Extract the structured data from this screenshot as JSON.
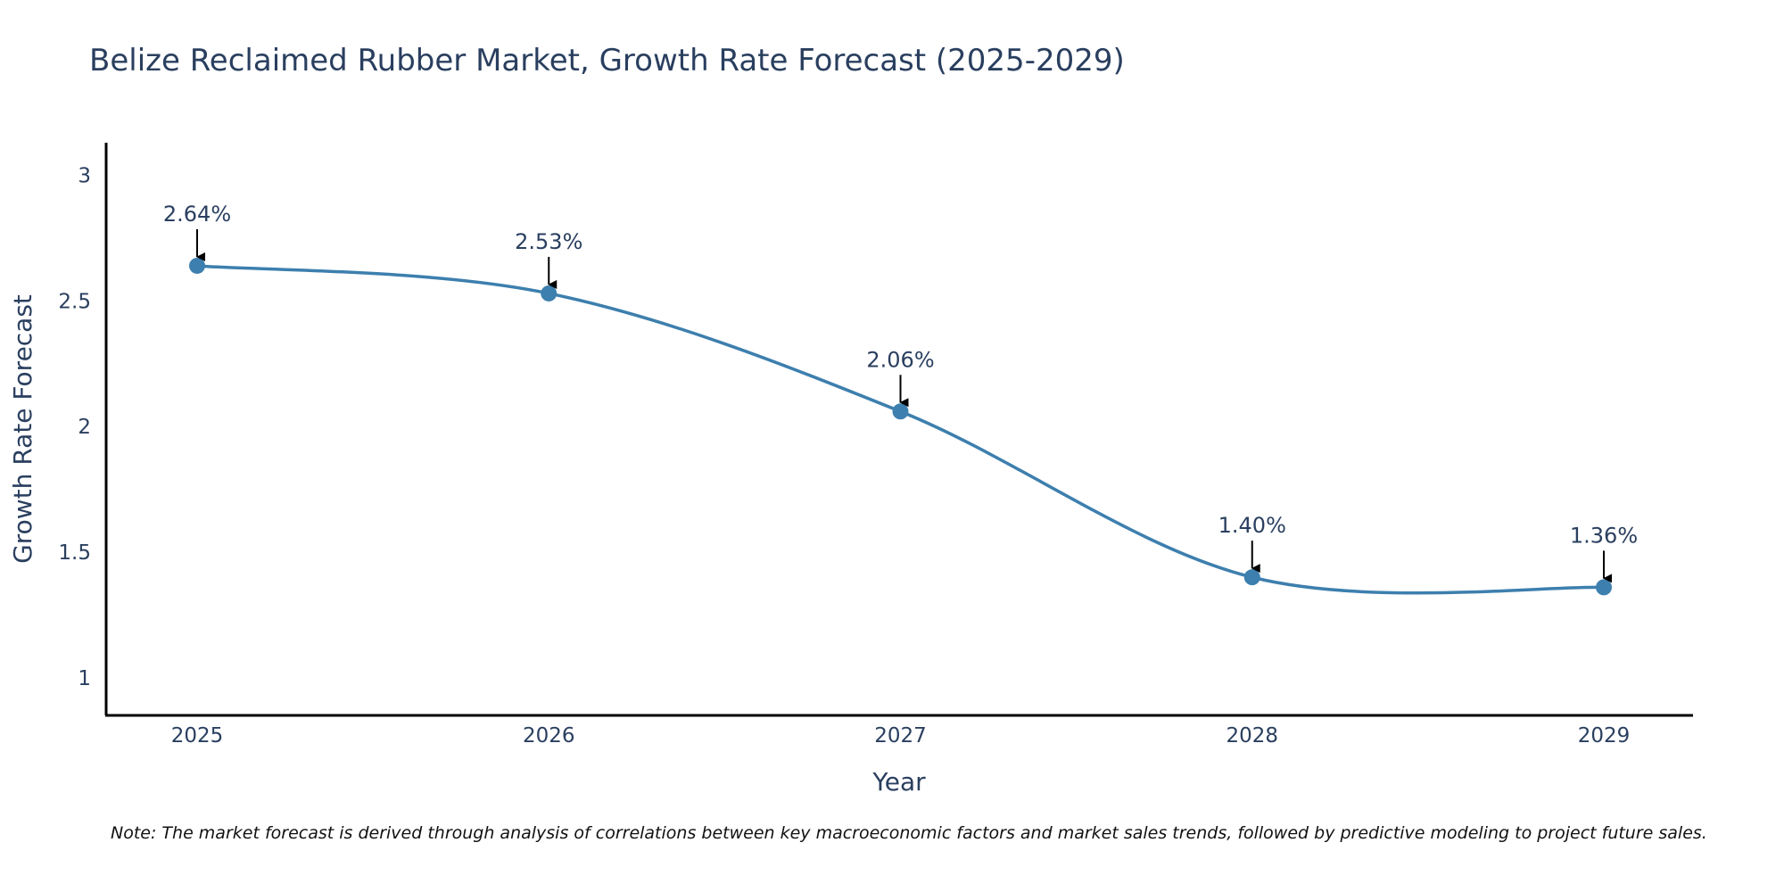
{
  "chart_data": {
    "type": "line",
    "title": "Belize Reclaimed Rubber Market, Growth Rate Forecast (2025-2029)",
    "xlabel": "Year",
    "ylabel": "Growth Rate Forecast",
    "categories": [
      "2025",
      "2026",
      "2027",
      "2028",
      "2029"
    ],
    "values": [
      2.64,
      2.53,
      2.06,
      1.4,
      1.36
    ],
    "data_labels": [
      "2.64%",
      "2.53%",
      "2.06%",
      "1.40%",
      "1.36%"
    ],
    "y_ticks": [
      1,
      1.5,
      2,
      2.5,
      3
    ],
    "y_tick_labels": [
      "1",
      "1.5",
      "2",
      "2.5",
      "3"
    ],
    "ylim": [
      0.85,
      3.13
    ],
    "grid": false,
    "legend": "none",
    "smooth": true,
    "line_color": "#3d7fae",
    "marker_color": "#3d7fae",
    "arrow_color": "#000000"
  },
  "note": "Note: The market forecast is derived through analysis of correlations between key macroeconomic factors and market sales trends, followed by predictive modeling to project future sales."
}
